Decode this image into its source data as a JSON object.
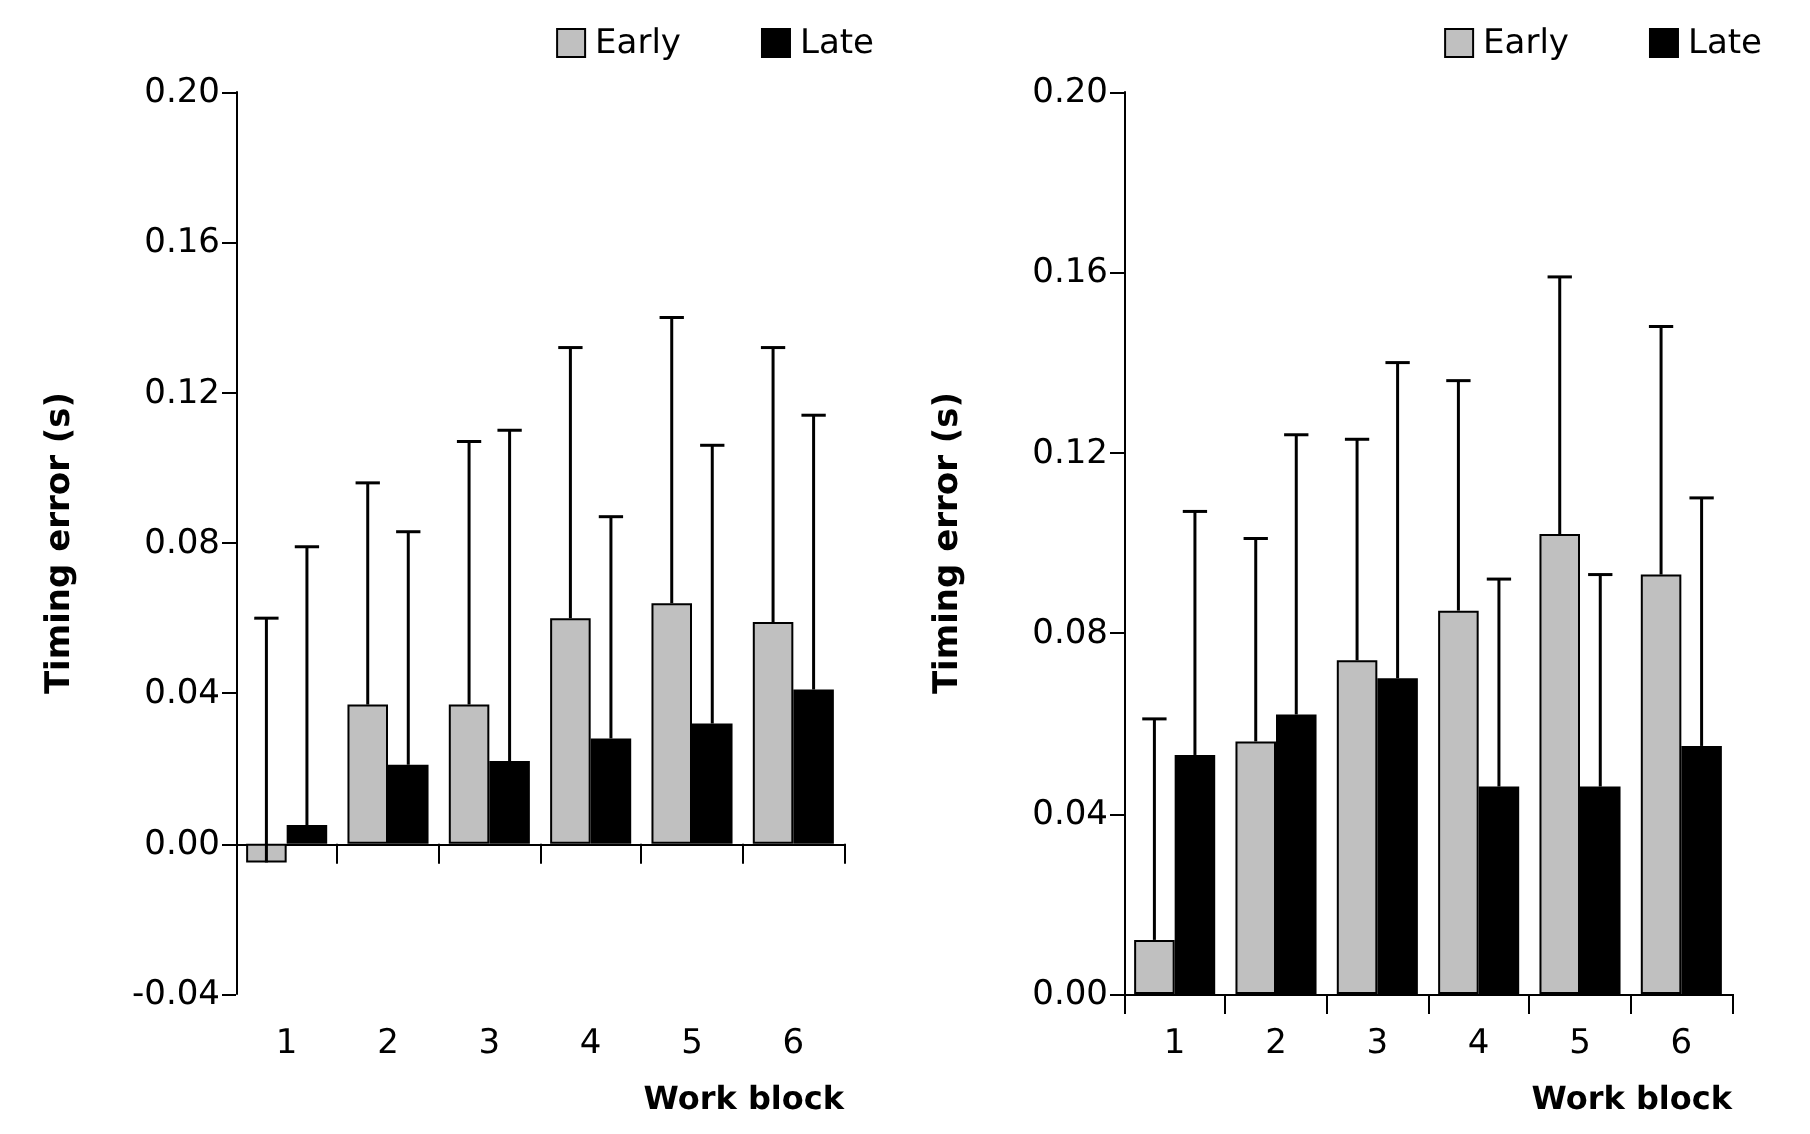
{
  "chart_data": [
    {
      "type": "bar",
      "ylabel": "Timing error (s)",
      "xlabel": "Work block",
      "categories": [
        "1",
        "2",
        "3",
        "4",
        "5",
        "6"
      ],
      "legend": "top right",
      "ylim": [
        -0.04,
        0.2
      ],
      "yticks": [
        {
          "value": -0.04,
          "label": "-0.04"
        },
        {
          "value": 0,
          "label": "0.00"
        },
        {
          "value": 0.04,
          "label": "0.04"
        },
        {
          "value": 0.08,
          "label": "0.08"
        },
        {
          "value": 0.12,
          "label": "0.12"
        },
        {
          "value": 0.16,
          "label": "0.16"
        },
        {
          "value": 0.2,
          "label": "0.20"
        }
      ],
      "series": [
        {
          "name": "Early",
          "color": "#c0c0c0",
          "values": [
            -0.005,
            0.037,
            0.037,
            0.06,
            0.064,
            0.059
          ],
          "errors": [
            [
              -0.005,
              0.06
            ],
            [
              0.037,
              0.096
            ],
            [
              0.037,
              0.107
            ],
            [
              0.06,
              0.132
            ],
            [
              0.064,
              0.14
            ],
            [
              0.059,
              0.132
            ]
          ]
        },
        {
          "name": "Late",
          "color": "#000000",
          "values": [
            0.005,
            0.021,
            0.022,
            0.028,
            0.032,
            0.041
          ],
          "errors": [
            [
              0.005,
              0.079
            ],
            [
              0.021,
              0.083
            ],
            [
              0.022,
              0.11
            ],
            [
              0.028,
              0.087
            ],
            [
              0.032,
              0.106
            ],
            [
              0.041,
              0.114
            ]
          ]
        }
      ]
    },
    {
      "type": "bar",
      "ylabel": "Timing error (s)",
      "xlabel": "Work block",
      "categories": [
        "1",
        "2",
        "3",
        "4",
        "5",
        "6"
      ],
      "legend": "top right",
      "ylim": [
        0,
        0.2
      ],
      "yticks": [
        {
          "value": 0,
          "label": "0.00"
        },
        {
          "value": 0.04,
          "label": "0.04"
        },
        {
          "value": 0.08,
          "label": "0.08"
        },
        {
          "value": 0.12,
          "label": "0.12"
        },
        {
          "value": 0.16,
          "label": "0.16"
        },
        {
          "value": 0.2,
          "label": "0.20"
        }
      ],
      "series": [
        {
          "name": "Early",
          "color": "#c0c0c0",
          "values": [
            0.012,
            0.056,
            0.074,
            0.085,
            0.102,
            0.093
          ],
          "errors": [
            [
              0.012,
              0.061
            ],
            [
              0.056,
              0.101
            ],
            [
              0.074,
              0.123
            ],
            [
              0.085,
              0.136
            ],
            [
              0.102,
              0.159
            ],
            [
              0.093,
              0.148
            ]
          ]
        },
        {
          "name": "Late",
          "color": "#000000",
          "values": [
            0.053,
            0.062,
            0.07,
            0.046,
            0.046,
            0.055
          ],
          "errors": [
            [
              0.053,
              0.107
            ],
            [
              0.062,
              0.124
            ],
            [
              0.07,
              0.14
            ],
            [
              0.046,
              0.092
            ],
            [
              0.046,
              0.093
            ],
            [
              0.055,
              0.11
            ]
          ]
        }
      ]
    }
  ]
}
